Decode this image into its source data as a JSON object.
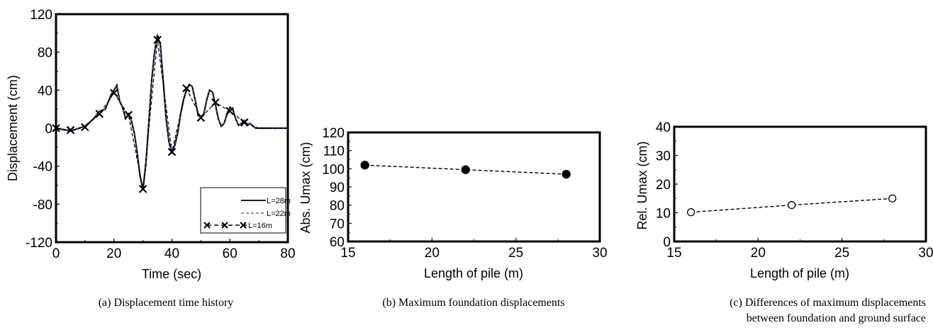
{
  "chart_data": [
    {
      "type": "line",
      "caption": "(a) Displacement time history",
      "xlabel": "Time (sec)",
      "ylabel": "Displacement (cm)",
      "xlim": [
        0,
        80
      ],
      "ylim": [
        -120,
        120
      ],
      "xticks": [
        "0",
        "20",
        "40",
        "60",
        "80"
      ],
      "yticks": [
        "-120",
        "-80",
        "-40",
        "0",
        "40",
        "80",
        "120"
      ],
      "legend_position": "bottom-right",
      "series": [
        {
          "name": "L=28m",
          "style": "solid",
          "x": [
            0,
            5,
            10,
            13,
            15,
            17,
            19,
            20,
            21,
            22,
            23,
            24,
            25,
            26,
            27,
            28,
            29,
            30,
            31,
            32,
            33,
            34,
            35,
            36,
            37,
            38,
            39,
            40,
            41,
            42,
            43,
            44,
            45,
            46,
            47,
            48,
            49,
            50,
            51,
            52,
            53,
            54,
            55,
            56,
            57,
            58,
            59,
            60,
            61,
            62,
            63,
            64,
            65,
            66,
            67,
            68,
            69,
            70,
            80
          ],
          "y": [
            0,
            -3,
            2,
            10,
            18,
            20,
            35,
            40,
            45,
            28,
            22,
            10,
            15,
            8,
            -5,
            -25,
            -50,
            -65,
            -38,
            5,
            50,
            80,
            98,
            88,
            50,
            10,
            -15,
            -25,
            -18,
            -5,
            15,
            30,
            40,
            46,
            44,
            30,
            15,
            12,
            15,
            30,
            40,
            38,
            25,
            10,
            2,
            5,
            15,
            22,
            20,
            10,
            3,
            5,
            8,
            3,
            5,
            2,
            0,
            0,
            0
          ]
        },
        {
          "name": "L=22m",
          "style": "dashed",
          "x": [
            0,
            5,
            10,
            13,
            15,
            17,
            19,
            20,
            21,
            22,
            23,
            24,
            25,
            26,
            27,
            28,
            29,
            30,
            31,
            32,
            33,
            34,
            35,
            36,
            37,
            38,
            39,
            40,
            41,
            42,
            43,
            44,
            45,
            46,
            47,
            48,
            49,
            50,
            51,
            52,
            53,
            54,
            55,
            56,
            57,
            58,
            59,
            60,
            61,
            62,
            63,
            64,
            65,
            66,
            67,
            68,
            69,
            70,
            80
          ],
          "y": [
            0,
            -3,
            2,
            10,
            18,
            20,
            35,
            41,
            45,
            28,
            22,
            10,
            15,
            8,
            -5,
            -25,
            -50,
            -65,
            -38,
            5,
            50,
            80,
            99,
            88,
            50,
            10,
            -15,
            -25,
            -18,
            -5,
            15,
            30,
            40,
            47,
            44,
            30,
            15,
            12,
            15,
            30,
            40,
            38,
            25,
            10,
            2,
            5,
            15,
            22,
            20,
            10,
            3,
            5,
            8,
            3,
            5,
            2,
            0,
            0,
            0
          ]
        },
        {
          "name": "L=16m",
          "style": "dash-cross",
          "x": [
            0,
            5,
            10,
            15,
            20,
            25,
            30,
            35,
            40,
            45,
            50,
            55,
            60,
            65,
            70,
            80
          ],
          "y": [
            0,
            -2,
            1,
            15,
            37,
            14,
            -64,
            93,
            -25,
            42,
            11,
            27,
            18,
            6,
            0,
            0
          ]
        }
      ]
    },
    {
      "type": "scatter",
      "caption": "(b) Maximum foundation displacements",
      "xlabel": "Length of pile (m)",
      "ylabel": "Abs. Umax (cm)",
      "xlim": [
        15,
        30
      ],
      "ylim": [
        60,
        120
      ],
      "xticks": [
        "15",
        "20",
        "25",
        "30"
      ],
      "yticks": [
        "60",
        "70",
        "80",
        "90",
        "100",
        "110",
        "120"
      ],
      "marker": "filled-circle",
      "line": "dashed",
      "x": [
        16,
        22,
        28
      ],
      "y": [
        102,
        99.5,
        97
      ]
    },
    {
      "type": "scatter",
      "caption": "(c) Differences of maximum displacements between foundation and ground surface",
      "caption_lines": [
        "(c) Differences of maximum displacements",
        "between foundation and ground surface"
      ],
      "xlabel": "Length of pile (m)",
      "ylabel": "Rel. Umax (cm)",
      "xlim": [
        15,
        30
      ],
      "ylim": [
        0,
        40
      ],
      "xticks": [
        "15",
        "20",
        "25",
        "30"
      ],
      "yticks": [
        "0",
        "10",
        "20",
        "30",
        "40"
      ],
      "marker": "open-circle",
      "line": "dashed",
      "x": [
        16,
        22,
        28
      ],
      "y": [
        10.2,
        12.7,
        15
      ]
    }
  ]
}
